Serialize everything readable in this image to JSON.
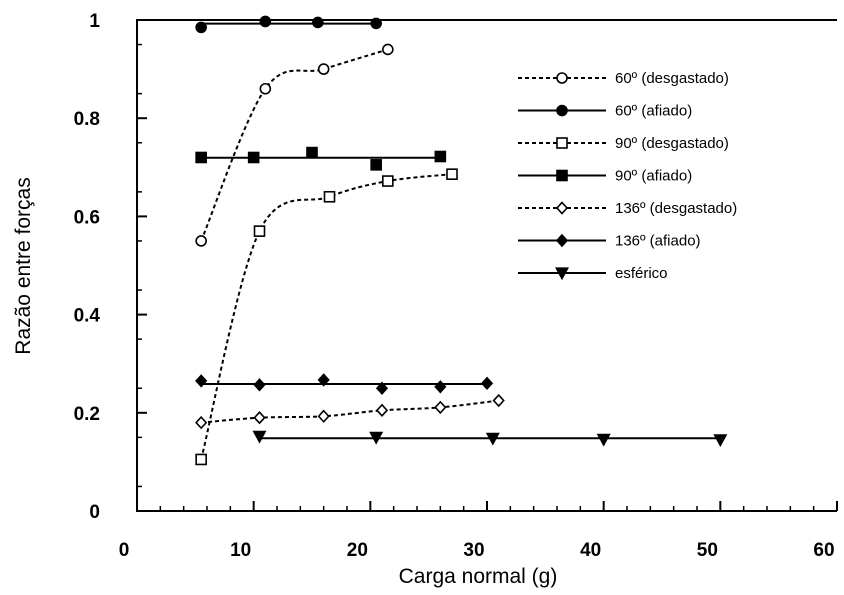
{
  "chart_data": {
    "type": "line",
    "xlabel": "Carga normal (g)",
    "ylabel": "Razão entre forças",
    "xlim": [
      0,
      60
    ],
    "ylim": [
      0,
      1
    ],
    "xticks": [
      "0",
      "10",
      "20",
      "30",
      "40",
      "50",
      "60"
    ],
    "yticks": [
      "0",
      "0.2",
      "0.4",
      "0.6",
      "0.8",
      "1"
    ],
    "grid": false,
    "legend_position": "top-right",
    "series": [
      {
        "name": "60º (desgastado)",
        "line": "dashed",
        "marker": "circle-open",
        "fit": "curve",
        "x": [
          5.5,
          11,
          16,
          21.5
        ],
        "y": [
          0.55,
          0.86,
          0.9,
          0.94
        ]
      },
      {
        "name": "60º (afiado)",
        "line": "solid",
        "marker": "circle-filled",
        "fit": "flat",
        "x": [
          5.5,
          11,
          15.5,
          20.5
        ],
        "y": [
          0.985,
          0.997,
          0.995,
          0.993
        ]
      },
      {
        "name": "90º (desgastado)",
        "line": "dashed",
        "marker": "square-open",
        "fit": "curve",
        "x": [
          5.5,
          10.5,
          16.5,
          21.5,
          27
        ],
        "y": [
          0.105,
          0.57,
          0.64,
          0.672,
          0.686
        ]
      },
      {
        "name": "90º (afiado)",
        "line": "solid",
        "marker": "square-filled",
        "fit": "flat",
        "x": [
          5.5,
          10,
          15,
          20.5,
          26
        ],
        "y": [
          0.72,
          0.72,
          0.73,
          0.705,
          0.722
        ]
      },
      {
        "name": "136º (desgastado)",
        "line": "dashed",
        "marker": "diamond-open",
        "fit": "curve",
        "x": [
          5.5,
          10.5,
          16,
          21,
          26,
          31
        ],
        "y": [
          0.18,
          0.19,
          0.193,
          0.205,
          0.211,
          0.225
        ]
      },
      {
        "name": "136º (afiado)",
        "line": "solid",
        "marker": "diamond-filled",
        "fit": "flat",
        "x": [
          5.5,
          10.5,
          16,
          21,
          26,
          30
        ],
        "y": [
          0.265,
          0.257,
          0.267,
          0.25,
          0.253,
          0.26
        ]
      },
      {
        "name": "esférico",
        "line": "solid",
        "marker": "triangle-down-filled",
        "fit": "flat",
        "x": [
          10.5,
          20.5,
          30.5,
          40,
          50
        ],
        "y": [
          0.152,
          0.15,
          0.148,
          0.146,
          0.145
        ]
      }
    ]
  }
}
